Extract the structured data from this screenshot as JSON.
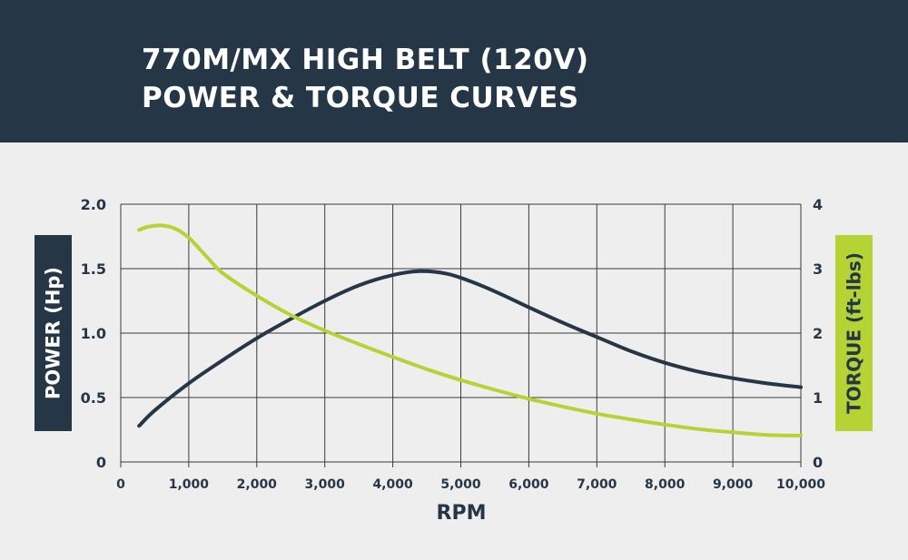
{
  "header": {
    "title_line1": "770M/MX HIGH BELT (120V)",
    "title_line2": "POWER & TORQUE CURVES"
  },
  "colors": {
    "header_bg": "#253646",
    "background": "#efeeee",
    "power_line": "#253646",
    "torque_line": "#b5d334",
    "grid": "#3a3a3a"
  },
  "chart_data": {
    "type": "line",
    "title": "770M/MX HIGH BELT (120V) POWER & TORQUE CURVES",
    "xlabel": "RPM",
    "ylabel_left": "POWER (Hp)",
    "ylabel_right": "TORQUE (ft-lbs)",
    "xlim": [
      0,
      10000
    ],
    "ylim_left": [
      0,
      2.0
    ],
    "ylim_right": [
      0,
      4
    ],
    "grid": true,
    "x_ticks": [
      "0",
      "1,000",
      "2,000",
      "3,000",
      "4,000",
      "5,000",
      "6,000",
      "7,000",
      "8,000",
      "9,000",
      "10,000"
    ],
    "x_tick_values": [
      0,
      1000,
      2000,
      3000,
      4000,
      5000,
      6000,
      7000,
      8000,
      9000,
      10000
    ],
    "y_left_ticks": [
      "0",
      "0.5",
      "1.0",
      "1.5",
      "2.0"
    ],
    "y_left_tick_values": [
      0,
      0.5,
      1.0,
      1.5,
      2.0
    ],
    "y_right_ticks": [
      "0",
      "1",
      "2",
      "3",
      "4"
    ],
    "y_right_tick_values": [
      0,
      1,
      2,
      3,
      4
    ],
    "series": [
      {
        "name": "POWER (Hp)",
        "axis": "left",
        "x": [
          270,
          500,
          1000,
          1500,
          2000,
          2500,
          3000,
          3500,
          4000,
          4400,
          4800,
          5200,
          5600,
          6000,
          6500,
          7000,
          7500,
          8000,
          8500,
          9000,
          9500,
          10000
        ],
        "values": [
          0.28,
          0.4,
          0.61,
          0.79,
          0.96,
          1.11,
          1.25,
          1.37,
          1.45,
          1.48,
          1.46,
          1.39,
          1.3,
          1.2,
          1.08,
          0.97,
          0.86,
          0.77,
          0.7,
          0.65,
          0.61,
          0.58
        ]
      },
      {
        "name": "TORQUE (ft-lbs)",
        "axis": "right",
        "x": [
          270,
          400,
          600,
          800,
          1000,
          1250,
          1500,
          2000,
          2500,
          3000,
          3500,
          4000,
          4500,
          5000,
          5500,
          6000,
          6500,
          7000,
          7500,
          8000,
          8500,
          9000,
          9500,
          10000
        ],
        "values": [
          3.6,
          3.65,
          3.67,
          3.62,
          3.48,
          3.2,
          2.93,
          2.58,
          2.28,
          2.04,
          1.83,
          1.63,
          1.44,
          1.27,
          1.12,
          0.98,
          0.86,
          0.75,
          0.66,
          0.58,
          0.51,
          0.46,
          0.42,
          0.41
        ]
      }
    ]
  }
}
